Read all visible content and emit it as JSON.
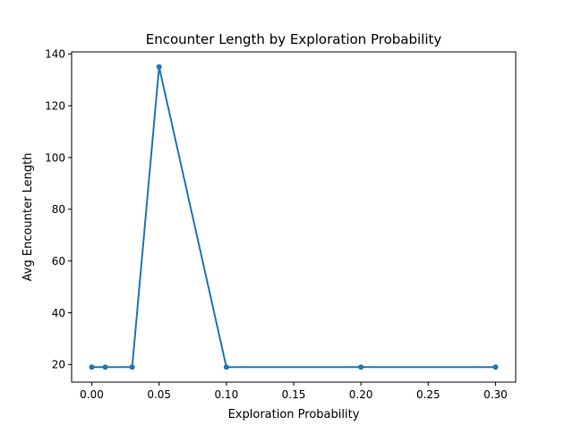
{
  "chart_data": {
    "type": "line",
    "title": "Encounter Length by Exploration Probability",
    "xlabel": "Exploration Probability",
    "ylabel": "Avg Encounter Length",
    "xlim": [
      -0.015,
      0.315
    ],
    "ylim": [
      13.2,
      140.8
    ],
    "xticks": [
      0.0,
      0.05,
      0.1,
      0.15,
      0.2,
      0.25,
      0.3
    ],
    "xtick_labels": [
      "0.00",
      "0.05",
      "0.10",
      "0.15",
      "0.20",
      "0.25",
      "0.30"
    ],
    "yticks": [
      20,
      40,
      60,
      80,
      100,
      120,
      140
    ],
    "ytick_labels": [
      "20",
      "40",
      "60",
      "80",
      "100",
      "120",
      "140"
    ],
    "grid": false,
    "legend": "none",
    "series": [
      {
        "color": "#1f77b4",
        "marker": "circle",
        "x": [
          0.0,
          0.01,
          0.03,
          0.05,
          0.1,
          0.2,
          0.3
        ],
        "y": [
          19,
          19,
          19,
          135,
          19,
          19,
          19
        ]
      }
    ]
  }
}
